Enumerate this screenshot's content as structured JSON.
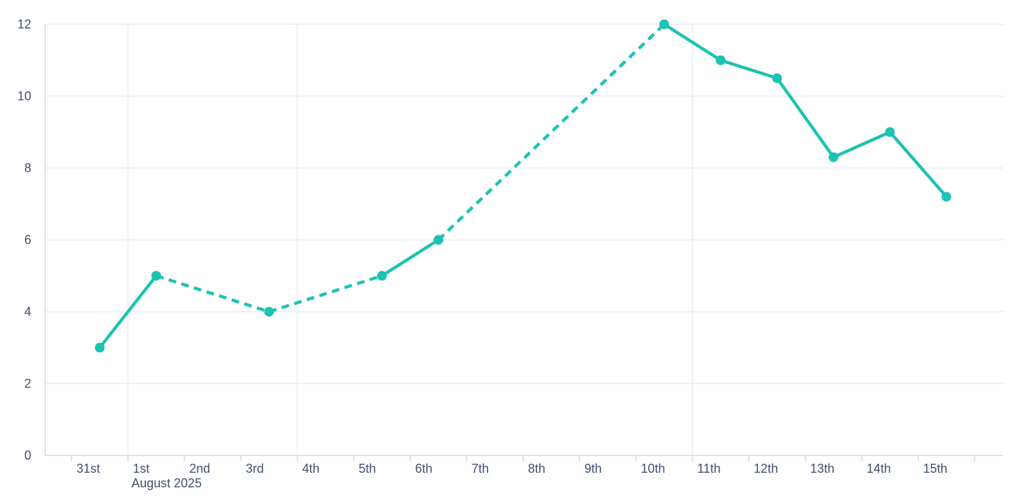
{
  "chart": {
    "background": "#ffffff",
    "accent_color": "#1dc2b2",
    "gridline_color": "#e9ecf4",
    "axis_line_color": "#dde2ed",
    "tick_mark_color": "#dde2ed",
    "label_color": "#42506b",
    "month_label": "August 2025"
  },
  "chart_data": {
    "type": "line",
    "title": "",
    "xlabel": "August 2025",
    "ylabel": "",
    "categories": [
      "31st",
      "1st",
      "2nd",
      "3rd",
      "4th",
      "5th",
      "6th",
      "7th",
      "8th",
      "9th",
      "10th",
      "11th",
      "12th",
      "13th",
      "14th",
      "15th"
    ],
    "series": [
      {
        "name": "daily-values",
        "color": "#1dc2b2",
        "values": [
          3,
          5,
          null,
          4,
          null,
          5,
          6,
          null,
          null,
          null,
          12,
          11,
          10.5,
          8.3,
          9,
          7.2
        ],
        "gap_style": "dashed-connector-across-missing-days",
        "marker": "filled-circle"
      }
    ],
    "ylim": [
      0,
      12
    ],
    "y_ticks": [
      0,
      2,
      4,
      6,
      8,
      10,
      12
    ],
    "grid": "horizontal-on, vertical-at-week-and-month-starts",
    "vertical_gridline_categories": [
      "1st",
      "4th",
      "11th"
    ],
    "legend": "none",
    "x_axis_note": "one unlabeled trailing tick after 15th"
  }
}
